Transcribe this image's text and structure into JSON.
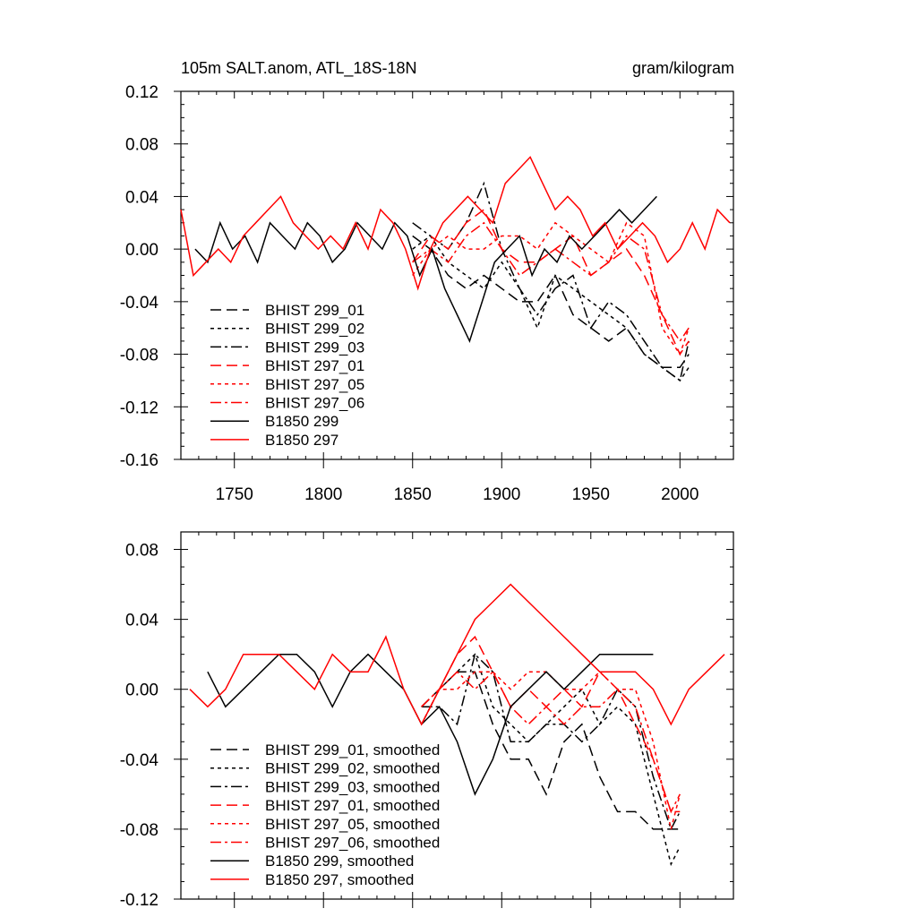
{
  "colors": {
    "black": "#000000",
    "red": "#ff0000"
  },
  "chart_data": [
    {
      "type": "line",
      "title_left": "105m SALT.anom, ATL_18S-18N",
      "title_right": "gram/kilogram",
      "xlim": [
        1720,
        2030
      ],
      "ylim": [
        -0.16,
        0.12
      ],
      "xticks": [
        1750,
        1800,
        1850,
        1900,
        1950,
        2000
      ],
      "xtick_labels": [
        "1750",
        "1800",
        "1850",
        "1900",
        "1950",
        "2000"
      ],
      "yticks": [
        -0.16,
        -0.12,
        -0.08,
        -0.04,
        0.0,
        0.04,
        0.08,
        0.12
      ],
      "ytick_labels": [
        "-0.16",
        "-0.12",
        "-0.08",
        "-0.04",
        "0.00",
        "0.04",
        "0.08",
        "0.12"
      ],
      "legend_position": "bottom-left",
      "series": [
        {
          "name": "BHIST 299_01",
          "color": "#000000",
          "dash": "long-dash",
          "x": [
            1850,
            1860,
            1870,
            1880,
            1890,
            1900,
            1910,
            1920,
            1930,
            1940,
            1950,
            1960,
            1970,
            1980,
            1990,
            2000,
            2005
          ],
          "y": [
            0.01,
            0.0,
            -0.02,
            -0.03,
            -0.02,
            -0.03,
            -0.04,
            -0.04,
            -0.02,
            -0.05,
            -0.06,
            -0.07,
            -0.06,
            -0.08,
            -0.09,
            -0.09,
            -0.08
          ]
        },
        {
          "name": "BHIST 299_02",
          "color": "#000000",
          "dash": "short-dash",
          "x": [
            1850,
            1860,
            1870,
            1880,
            1890,
            1900,
            1910,
            1920,
            1930,
            1940,
            1950,
            1960,
            1970,
            1980,
            1990,
            2000,
            2005
          ],
          "y": [
            0.0,
            0.01,
            -0.01,
            -0.02,
            -0.03,
            -0.01,
            -0.03,
            -0.06,
            -0.02,
            -0.03,
            -0.04,
            -0.05,
            -0.06,
            -0.08,
            -0.09,
            -0.1,
            -0.09
          ]
        },
        {
          "name": "BHIST 299_03",
          "color": "#000000",
          "dash": "dash-dot",
          "x": [
            1850,
            1860,
            1870,
            1880,
            1890,
            1900,
            1910,
            1920,
            1930,
            1940,
            1950,
            1960,
            1970,
            1980,
            1990,
            2000,
            2005
          ],
          "y": [
            0.02,
            0.01,
            0.0,
            0.02,
            0.05,
            0.0,
            -0.03,
            -0.05,
            -0.03,
            -0.02,
            -0.06,
            -0.04,
            -0.05,
            -0.07,
            -0.09,
            -0.1,
            -0.07
          ]
        },
        {
          "name": "BHIST 297_01",
          "color": "#ff0000",
          "dash": "long-dash",
          "x": [
            1850,
            1860,
            1870,
            1880,
            1890,
            1900,
            1910,
            1920,
            1930,
            1940,
            1950,
            1960,
            1970,
            1980,
            1990,
            2000,
            2005
          ],
          "y": [
            -0.01,
            0.01,
            0.0,
            0.02,
            0.03,
            0.0,
            -0.01,
            -0.01,
            0.0,
            0.01,
            -0.02,
            -0.01,
            0.0,
            -0.02,
            -0.05,
            -0.08,
            -0.07
          ]
        },
        {
          "name": "BHIST 297_05",
          "color": "#ff0000",
          "dash": "short-dash",
          "x": [
            1850,
            1860,
            1870,
            1880,
            1890,
            1900,
            1910,
            1920,
            1930,
            1940,
            1950,
            1960,
            1970,
            1980,
            1990,
            2000,
            2005
          ],
          "y": [
            -0.02,
            0.0,
            0.01,
            0.0,
            0.0,
            0.01,
            0.01,
            0.0,
            0.02,
            0.01,
            0.0,
            -0.01,
            0.02,
            0.01,
            -0.06,
            -0.08,
            -0.06
          ]
        },
        {
          "name": "BHIST 297_06",
          "color": "#ff0000",
          "dash": "dash-dot",
          "x": [
            1850,
            1860,
            1870,
            1880,
            1890,
            1900,
            1910,
            1920,
            1930,
            1940,
            1950,
            1960,
            1970,
            1980,
            1990,
            2000,
            2005
          ],
          "y": [
            -0.01,
            0.0,
            -0.01,
            0.01,
            0.02,
            0.0,
            -0.02,
            -0.01,
            0.0,
            -0.01,
            -0.02,
            -0.01,
            0.01,
            0.0,
            -0.05,
            -0.07,
            -0.06
          ]
        },
        {
          "name": "B1850 299",
          "color": "#000000",
          "dash": "solid",
          "x": [
            1728,
            1735,
            1742,
            1749,
            1756,
            1763,
            1770,
            1777,
            1784,
            1791,
            1798,
            1805,
            1812,
            1819,
            1826,
            1833,
            1840,
            1847,
            1854,
            1861,
            1868,
            1875,
            1882,
            1889,
            1896,
            1903,
            1910,
            1917,
            1924,
            1931,
            1938,
            1945,
            1952,
            1959,
            1966,
            1973,
            1980,
            1987
          ],
          "y": [
            0.0,
            -0.01,
            0.02,
            0.0,
            0.01,
            -0.01,
            0.02,
            0.01,
            0.0,
            0.02,
            0.01,
            -0.01,
            0.0,
            0.02,
            0.01,
            0.0,
            0.02,
            0.01,
            -0.02,
            0.0,
            -0.03,
            -0.05,
            -0.07,
            -0.04,
            -0.01,
            0.0,
            0.01,
            -0.02,
            0.0,
            -0.01,
            0.01,
            0.0,
            0.01,
            0.02,
            0.03,
            0.02,
            0.03,
            0.04
          ]
        },
        {
          "name": "B1850 297",
          "color": "#ff0000",
          "dash": "solid",
          "x": [
            1720,
            1727,
            1734,
            1741,
            1748,
            1755,
            1762,
            1769,
            1776,
            1783,
            1790,
            1797,
            1804,
            1811,
            1818,
            1825,
            1832,
            1839,
            1846,
            1853,
            1860,
            1867,
            1874,
            1881,
            1888,
            1895,
            1902,
            1909,
            1916,
            1923,
            1930,
            1937,
            1944,
            1951,
            1958,
            1965,
            1972,
            1979,
            1986,
            1993,
            2000,
            2007,
            2014,
            2021,
            2028
          ],
          "y": [
            0.03,
            -0.02,
            -0.01,
            0.0,
            -0.01,
            0.01,
            0.02,
            0.03,
            0.04,
            0.02,
            0.01,
            0.0,
            0.01,
            0.0,
            0.02,
            0.0,
            0.03,
            0.02,
            0.0,
            -0.03,
            0.0,
            0.02,
            0.03,
            0.04,
            0.03,
            0.02,
            0.05,
            0.06,
            0.07,
            0.05,
            0.03,
            0.04,
            0.03,
            0.01,
            0.02,
            0.0,
            0.01,
            0.02,
            0.01,
            -0.01,
            0.0,
            0.02,
            0.0,
            0.03,
            0.02
          ]
        }
      ]
    },
    {
      "type": "line",
      "xlim": [
        1720,
        2030
      ],
      "ylim": [
        -0.12,
        0.09
      ],
      "xticks": [
        1750,
        1800,
        1850,
        1900,
        1950,
        2000
      ],
      "yticks": [
        -0.12,
        -0.08,
        -0.04,
        0.0,
        0.04,
        0.08
      ],
      "ytick_labels": [
        "-0.12",
        "-0.08",
        "-0.04",
        "0.00",
        "0.04",
        "0.08"
      ],
      "legend_position": "bottom-left",
      "series": [
        {
          "name": "BHIST 299_01, smoothed",
          "color": "#000000",
          "dash": "long-dash",
          "x": [
            1855,
            1865,
            1875,
            1885,
            1895,
            1905,
            1915,
            1925,
            1935,
            1945,
            1955,
            1965,
            1975,
            1985,
            1995,
            2000
          ],
          "y": [
            -0.01,
            0.0,
            0.01,
            0.01,
            -0.02,
            -0.04,
            -0.04,
            -0.06,
            -0.03,
            -0.02,
            -0.05,
            -0.07,
            -0.07,
            -0.08,
            -0.08,
            -0.08
          ]
        },
        {
          "name": "BHIST 299_02, smoothed",
          "color": "#000000",
          "dash": "short-dash",
          "x": [
            1855,
            1865,
            1875,
            1885,
            1895,
            1905,
            1915,
            1925,
            1935,
            1945,
            1955,
            1965,
            1975,
            1985,
            1995,
            2000
          ],
          "y": [
            -0.02,
            0.0,
            0.01,
            0.02,
            -0.01,
            -0.02,
            -0.03,
            -0.02,
            -0.01,
            0.0,
            -0.02,
            -0.01,
            -0.02,
            -0.06,
            -0.1,
            -0.09
          ]
        },
        {
          "name": "BHIST 299_03, smoothed",
          "color": "#000000",
          "dash": "dash-dot",
          "x": [
            1855,
            1865,
            1875,
            1885,
            1895,
            1905,
            1915,
            1925,
            1935,
            1945,
            1955,
            1965,
            1975,
            1985,
            1995,
            2000
          ],
          "y": [
            -0.01,
            -0.01,
            -0.02,
            0.02,
            0.01,
            -0.03,
            -0.03,
            -0.02,
            -0.02,
            -0.03,
            -0.02,
            0.0,
            -0.01,
            -0.05,
            -0.08,
            -0.07
          ]
        },
        {
          "name": "BHIST 297_01, smoothed",
          "color": "#ff0000",
          "dash": "long-dash",
          "x": [
            1855,
            1865,
            1875,
            1885,
            1895,
            1905,
            1915,
            1925,
            1935,
            1945,
            1955,
            1965,
            1975,
            1985,
            1995,
            2000
          ],
          "y": [
            -0.02,
            0.0,
            0.02,
            0.03,
            0.01,
            -0.01,
            0.0,
            -0.01,
            0.0,
            -0.01,
            0.01,
            0.0,
            -0.02,
            -0.04,
            -0.07,
            -0.07
          ]
        },
        {
          "name": "BHIST 297_05, smoothed",
          "color": "#ff0000",
          "dash": "short-dash",
          "x": [
            1855,
            1865,
            1875,
            1885,
            1895,
            1905,
            1915,
            1925,
            1935,
            1945,
            1955,
            1965,
            1975,
            1985,
            1995,
            2000
          ],
          "y": [
            -0.01,
            0.0,
            0.0,
            0.01,
            0.01,
            0.0,
            0.01,
            0.01,
            0.0,
            0.0,
            0.01,
            0.0,
            0.0,
            -0.03,
            -0.08,
            -0.06
          ]
        },
        {
          "name": "BHIST 297_06, smoothed",
          "color": "#ff0000",
          "dash": "dash-dot",
          "x": [
            1855,
            1865,
            1875,
            1885,
            1895,
            1905,
            1915,
            1925,
            1935,
            1945,
            1955,
            1965,
            1975,
            1985,
            1995,
            2000
          ],
          "y": [
            -0.01,
            0.0,
            0.01,
            0.0,
            0.01,
            -0.01,
            -0.02,
            -0.01,
            -0.02,
            -0.01,
            -0.01,
            0.0,
            -0.01,
            -0.04,
            -0.07,
            -0.06
          ]
        },
        {
          "name": "B1850 299, smoothed",
          "color": "#000000",
          "dash": "solid",
          "x": [
            1735,
            1745,
            1755,
            1765,
            1775,
            1785,
            1795,
            1805,
            1815,
            1825,
            1835,
            1845,
            1855,
            1865,
            1875,
            1885,
            1895,
            1905,
            1915,
            1925,
            1935,
            1945,
            1955,
            1965,
            1975,
            1985
          ],
          "y": [
            0.01,
            -0.01,
            0.0,
            0.01,
            0.02,
            0.02,
            0.01,
            -0.01,
            0.01,
            0.02,
            0.01,
            0.0,
            -0.02,
            -0.01,
            -0.03,
            -0.06,
            -0.04,
            -0.01,
            0.0,
            0.01,
            0.0,
            0.01,
            0.02,
            0.02,
            0.02,
            0.02
          ]
        },
        {
          "name": "B1850 297, smoothed",
          "color": "#ff0000",
          "dash": "solid",
          "x": [
            1725,
            1735,
            1745,
            1755,
            1765,
            1775,
            1785,
            1795,
            1805,
            1815,
            1825,
            1835,
            1845,
            1855,
            1865,
            1875,
            1885,
            1895,
            1905,
            1915,
            1925,
            1935,
            1945,
            1955,
            1965,
            1975,
            1985,
            1995,
            2005,
            2015,
            2025
          ],
          "y": [
            0.0,
            -0.01,
            0.0,
            0.02,
            0.02,
            0.02,
            0.01,
            0.0,
            0.02,
            0.01,
            0.01,
            0.03,
            0.0,
            -0.02,
            0.0,
            0.02,
            0.04,
            0.05,
            0.06,
            0.05,
            0.04,
            0.03,
            0.02,
            0.01,
            0.01,
            0.01,
            0.0,
            -0.02,
            0.0,
            0.01,
            0.02
          ]
        }
      ]
    }
  ]
}
